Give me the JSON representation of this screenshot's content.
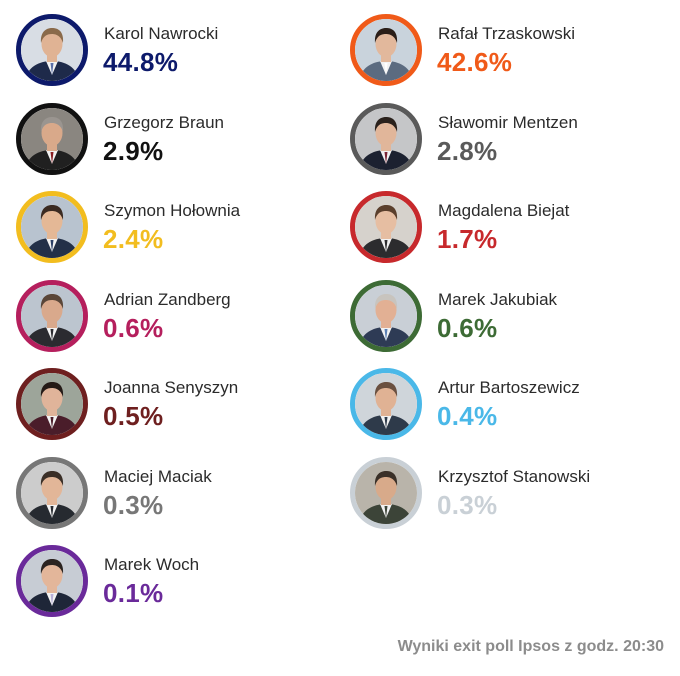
{
  "chart_data": {
    "type": "table",
    "unit": "%",
    "candidates": [
      {
        "name": "Karol Nawrocki",
        "value": 44.8,
        "label": "44.8%",
        "color": "#0d1a6b",
        "hair": "#8a6a4a",
        "suit": "#1e2a4a",
        "tie": "#5a6fa8",
        "skin": "#e0b394",
        "bg": "#d8dde4"
      },
      {
        "name": "Rafał Trzaskowski",
        "value": 42.6,
        "label": "42.6%",
        "color": "#f05a19",
        "hair": "#2a1e18",
        "suit": "#5b6b80",
        "tie": "#ffffff",
        "skin": "#e2b89c",
        "bg": "#c9d3dc"
      },
      {
        "name": "Grzegorz Braun",
        "value": 2.9,
        "label": "2.9%",
        "color": "#111111",
        "hair": "#9a9590",
        "suit": "#202020",
        "tie": "#8a1e22",
        "skin": "#d9a98a",
        "bg": "#8a8680"
      },
      {
        "name": "Sławomir Mentzen",
        "value": 2.8,
        "label": "2.8%",
        "color": "#5a5a5a",
        "hair": "#2a211c",
        "suit": "#1c2130",
        "tie": "#7b2333",
        "skin": "#e1b69a",
        "bg": "#c5c6c8"
      },
      {
        "name": "Szymon Hołownia",
        "value": 2.4,
        "label": "2.4%",
        "color": "#f2bd1f",
        "hair": "#3b2b22",
        "suit": "#233048",
        "tie": "#2b3f66",
        "skin": "#e4b896",
        "bg": "#b8c3cf"
      },
      {
        "name": "Magdalena Biejat",
        "value": 1.7,
        "label": "1.7%",
        "color": "#c7292c",
        "hair": "#5a3f2c",
        "suit": "#2c2c2e",
        "tie": "#2c2c2e",
        "skin": "#e6bea2",
        "bg": "#d6d2cc"
      },
      {
        "name": "Adrian Zandberg",
        "value": 0.6,
        "label": "0.6%",
        "color": "#b51f5d",
        "hair": "#5a4638",
        "suit": "#2b2b30",
        "tie": "#2b2b30",
        "skin": "#d9a98c",
        "bg": "#bcc5cf"
      },
      {
        "name": "Marek Jakubiak",
        "value": 0.6,
        "label": "0.6%",
        "color": "#3d6b35",
        "hair": "#c8c4be",
        "suit": "#2e3b55",
        "tie": "#5a7fb3",
        "skin": "#e2b094",
        "bg": "#c9cfd6"
      },
      {
        "name": "Joanna Senyszyn",
        "value": 0.5,
        "label": "0.5%",
        "color": "#6e1f1f",
        "hair": "#241a16",
        "suit": "#4a1d2a",
        "tie": "#4a1d2a",
        "skin": "#e0b49a",
        "bg": "#9da59a"
      },
      {
        "name": "Artur Bartoszewicz",
        "value": 0.4,
        "label": "0.4%",
        "color": "#4ab8e8",
        "hair": "#6a5040",
        "suit": "#2e3a4a",
        "tie": "#2e3a4a",
        "skin": "#e0b294",
        "bg": "#cfd5da"
      },
      {
        "name": "Maciej Maciak",
        "value": 0.3,
        "label": "0.3%",
        "color": "#777777",
        "hair": "#3a2e26",
        "suit": "#262a30",
        "tie": "#262a30",
        "skin": "#e2b698",
        "bg": "#cccccc"
      },
      {
        "name": "Krzysztof Stanowski",
        "value": 0.3,
        "label": "0.3%",
        "color": "#c9d0d6",
        "hair": "#3a3028",
        "suit": "#3c4438",
        "tie": "#3c4438",
        "skin": "#d8aa8a",
        "bg": "#b9b4aa"
      },
      {
        "name": "Marek Woch",
        "value": 0.1,
        "label": "0.1%",
        "color": "#6a2a9a",
        "hair": "#2b2320",
        "suit": "#1e2638",
        "tie": "#b8b0d8",
        "skin": "#e3b69a",
        "bg": "#c7ccd4"
      }
    ]
  },
  "footer": "Wyniki exit poll Ipsos z godz. 20:30"
}
